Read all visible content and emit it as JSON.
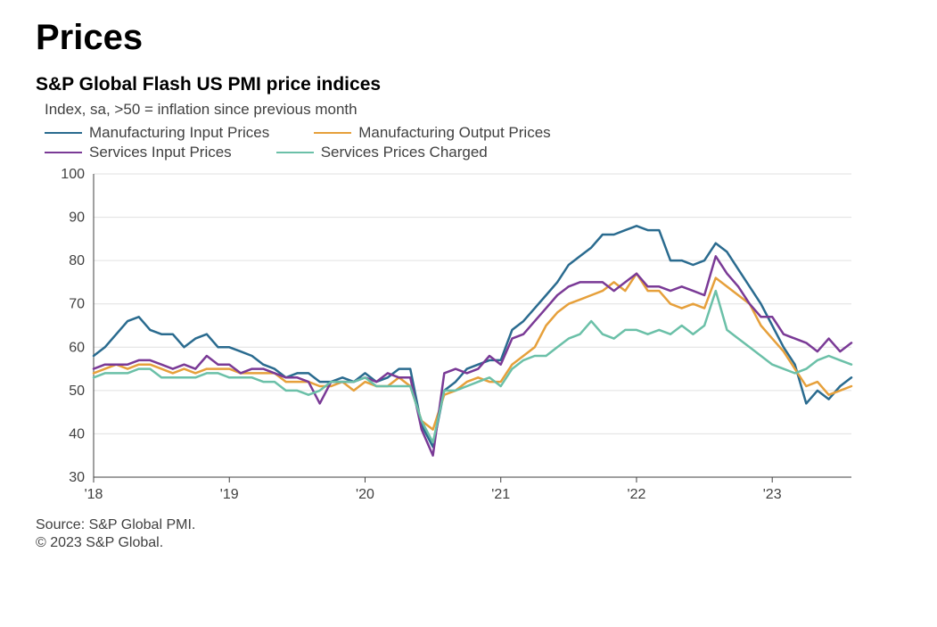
{
  "title": "Prices",
  "subtitle": "S&P Global Flash US PMI price indices",
  "index_note": "Index, sa, >50 = inflation since previous month",
  "legend": {
    "s1": "Manufacturing Input Prices",
    "s2": "Manufacturing Output Prices",
    "s3": "Services Input Prices",
    "s4": "Services Prices Charged"
  },
  "footer": {
    "source": "Source: S&P Global PMI.",
    "copyright": "© 2023 S&P Global."
  },
  "chart": {
    "type": "line",
    "background_color": "#ffffff",
    "grid_color": "#e0e0e0",
    "axis_color": "#404040",
    "axis_line_width": 1,
    "tick_label_color": "#404040",
    "tick_label_fontsize": 16,
    "line_width": 2.5,
    "y": {
      "min": 30,
      "max": 100,
      "step": 10,
      "ticks": [
        30,
        40,
        50,
        60,
        70,
        80,
        90,
        100
      ]
    },
    "x": {
      "n_points": 68,
      "year_marks": [
        {
          "label": "'18",
          "index": 0
        },
        {
          "label": "'19",
          "index": 12
        },
        {
          "label": "'20",
          "index": 24
        },
        {
          "label": "'21",
          "index": 36
        },
        {
          "label": "'22",
          "index": 48
        },
        {
          "label": "'23",
          "index": 60
        }
      ]
    },
    "series": [
      {
        "key": "s1",
        "name": "Manufacturing Input Prices",
        "color": "#2a6b8f",
        "values": [
          58,
          60,
          63,
          66,
          67,
          64,
          63,
          63,
          60,
          62,
          63,
          60,
          60,
          59,
          58,
          56,
          55,
          53,
          54,
          54,
          52,
          52,
          53,
          52,
          54,
          52,
          53,
          55,
          55,
          42,
          37,
          50,
          52,
          55,
          56,
          57,
          57,
          64,
          66,
          69,
          72,
          75,
          79,
          81,
          83,
          86,
          86,
          87,
          88,
          87,
          87,
          80,
          80,
          79,
          80,
          84,
          82,
          78,
          74,
          70,
          65,
          60,
          56,
          47,
          50,
          48,
          51,
          53
        ]
      },
      {
        "key": "s2",
        "name": "Manufacturing Output Prices",
        "color": "#e6a03b",
        "values": [
          54,
          55,
          56,
          55,
          56,
          56,
          55,
          54,
          55,
          54,
          55,
          55,
          55,
          54,
          54,
          54,
          54,
          52,
          52,
          52,
          51,
          51,
          52,
          50,
          52,
          51,
          51,
          53,
          51,
          43,
          41,
          49,
          50,
          52,
          53,
          52,
          52,
          56,
          58,
          60,
          65,
          68,
          70,
          71,
          72,
          73,
          75,
          73,
          77,
          73,
          73,
          70,
          69,
          70,
          69,
          76,
          74,
          72,
          70,
          65,
          62,
          59,
          55,
          51,
          52,
          49,
          50,
          51
        ]
      },
      {
        "key": "s3",
        "name": "Services Input Prices",
        "color": "#7a3a96",
        "values": [
          55,
          56,
          56,
          56,
          57,
          57,
          56,
          55,
          56,
          55,
          58,
          56,
          56,
          54,
          55,
          55,
          54,
          53,
          53,
          52,
          47,
          52,
          52,
          52,
          53,
          52,
          54,
          53,
          53,
          41,
          35,
          54,
          55,
          54,
          55,
          58,
          56,
          62,
          63,
          66,
          69,
          72,
          74,
          75,
          75,
          75,
          73,
          75,
          77,
          74,
          74,
          73,
          74,
          73,
          72,
          81,
          77,
          74,
          70,
          67,
          67,
          63,
          62,
          61,
          59,
          62,
          59,
          61
        ]
      },
      {
        "key": "s4",
        "name": "Services Prices Charged",
        "color": "#6bc0a8",
        "values": [
          53,
          54,
          54,
          54,
          55,
          55,
          53,
          53,
          53,
          53,
          54,
          54,
          53,
          53,
          53,
          52,
          52,
          50,
          50,
          49,
          50,
          52,
          52,
          52,
          53,
          51,
          51,
          51,
          51,
          43,
          38,
          50,
          50,
          51,
          52,
          53,
          51,
          55,
          57,
          58,
          58,
          60,
          62,
          63,
          66,
          63,
          62,
          64,
          64,
          63,
          64,
          63,
          65,
          63,
          65,
          73,
          64,
          62,
          60,
          58,
          56,
          55,
          54,
          55,
          57,
          58,
          57,
          56
        ]
      }
    ]
  }
}
